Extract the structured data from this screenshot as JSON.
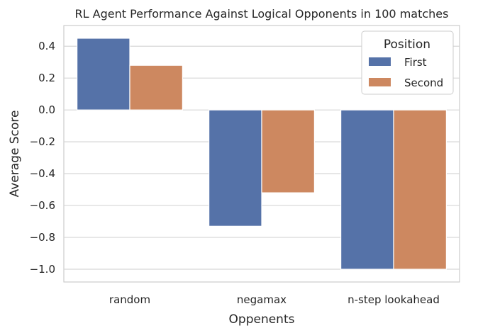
{
  "chart_data": {
    "type": "bar",
    "title": "RL Agent Performance Against Logical Opponents in 100 matches",
    "xlabel": "Oppenents",
    "ylabel": "Average Score",
    "categories": [
      "random",
      "negamax",
      "n-step lookahead"
    ],
    "series": [
      {
        "name": "First",
        "values": [
          0.45,
          -0.73,
          -1.0
        ],
        "color": "#5572a8"
      },
      {
        "name": "Second",
        "values": [
          0.28,
          -0.52,
          -1.0
        ],
        "color": "#cd8860"
      }
    ],
    "ylim": [
      -1.08,
      0.53
    ],
    "yticks": [
      0.4,
      0.2,
      0.0,
      -0.2,
      -0.4,
      -0.6,
      -0.8,
      -1.0
    ],
    "ytick_labels": [
      "0.4",
      "0.2",
      "0.0",
      "−0.2",
      "−0.4",
      "−0.6",
      "−0.8",
      "−1.0"
    ],
    "grid": true,
    "legend": {
      "title": "Position",
      "placement": "upper-right"
    }
  }
}
